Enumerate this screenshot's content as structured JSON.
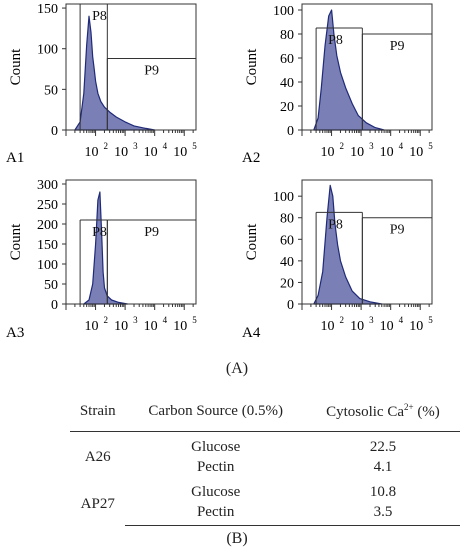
{
  "chart_data": [
    {
      "type": "area",
      "panel": "A1",
      "ylabel": "Count",
      "x_log": true,
      "xlim": [
        10,
        250000
      ],
      "ylim": [
        0,
        155
      ],
      "yticks": [
        0,
        50,
        100,
        150
      ],
      "xticks": [
        {
          "value": 100,
          "label": "10",
          "exp": "2"
        },
        {
          "value": 1000,
          "label": "10",
          "exp": "3"
        },
        {
          "value": 10000,
          "label": "10",
          "exp": "4"
        },
        {
          "value": 100000,
          "label": "10",
          "exp": "5"
        }
      ],
      "gates": [
        {
          "name": "P8",
          "x_start": 30,
          "x_end": 250,
          "y": 155
        },
        {
          "name": "P9",
          "x_start": 250,
          "x_end": 250000,
          "y": 88
        }
      ],
      "x": [
        20,
        30,
        40,
        50,
        60,
        70,
        80,
        90,
        100,
        120,
        150,
        200,
        300,
        500,
        1000,
        2000,
        5000,
        10000
      ],
      "y": [
        0,
        10,
        45,
        105,
        140,
        120,
        90,
        75,
        60,
        45,
        35,
        28,
        22,
        16,
        10,
        5,
        2,
        0
      ]
    },
    {
      "type": "area",
      "panel": "A2",
      "ylabel": "Count",
      "x_log": true,
      "xlim": [
        10,
        250000
      ],
      "ylim": [
        0,
        105
      ],
      "yticks": [
        0,
        20,
        40,
        60,
        80,
        100
      ],
      "xticks": [
        {
          "value": 100,
          "label": "10",
          "exp": "2"
        },
        {
          "value": 1000,
          "label": "10",
          "exp": "3"
        },
        {
          "value": 10000,
          "label": "10",
          "exp": "4"
        },
        {
          "value": 100000,
          "label": "10",
          "exp": "5"
        }
      ],
      "gates": [
        {
          "name": "P8",
          "x_start": 30,
          "x_end": 1100,
          "y": 85
        },
        {
          "name": "P9",
          "x_start": 1100,
          "x_end": 250000,
          "y": 80
        }
      ],
      "x": [
        25,
        35,
        45,
        60,
        80,
        100,
        120,
        150,
        200,
        300,
        500,
        800,
        1500,
        3000,
        6000
      ],
      "y": [
        0,
        10,
        35,
        70,
        95,
        100,
        80,
        62,
        48,
        35,
        22,
        12,
        6,
        2,
        0
      ]
    },
    {
      "type": "area",
      "panel": "A3",
      "ylabel": "Count",
      "x_log": true,
      "xlim": [
        10,
        250000
      ],
      "ylim": [
        0,
        310
      ],
      "yticks": [
        0,
        50,
        100,
        150,
        200,
        250,
        300
      ],
      "xticks": [
        {
          "value": 100,
          "label": "10",
          "exp": "2"
        },
        {
          "value": 1000,
          "label": "10",
          "exp": "3"
        },
        {
          "value": 10000,
          "label": "10",
          "exp": "4"
        },
        {
          "value": 100000,
          "label": "10",
          "exp": "5"
        }
      ],
      "gates": [
        {
          "name": "P8",
          "x_start": 30,
          "x_end": 250,
          "y": 210
        },
        {
          "name": "P9",
          "x_start": 250,
          "x_end": 250000,
          "y": 210
        }
      ],
      "x": [
        40,
        60,
        80,
        100,
        120,
        140,
        160,
        180,
        200,
        250,
        350,
        600,
        1200
      ],
      "y": [
        0,
        10,
        50,
        150,
        260,
        280,
        180,
        80,
        40,
        20,
        10,
        4,
        0
      ]
    },
    {
      "type": "area",
      "panel": "A4",
      "ylabel": "Count",
      "x_log": true,
      "xlim": [
        10,
        250000
      ],
      "ylim": [
        0,
        115
      ],
      "yticks": [
        0,
        20,
        40,
        60,
        80,
        100
      ],
      "xticks": [
        {
          "value": 100,
          "label": "10",
          "exp": "2"
        },
        {
          "value": 1000,
          "label": "10",
          "exp": "3"
        },
        {
          "value": 10000,
          "label": "10",
          "exp": "4"
        },
        {
          "value": 100000,
          "label": "10",
          "exp": "5"
        }
      ],
      "gates": [
        {
          "name": "P8",
          "x_start": 30,
          "x_end": 1100,
          "y": 85
        },
        {
          "name": "P9",
          "x_start": 1100,
          "x_end": 250000,
          "y": 80
        }
      ],
      "x": [
        25,
        35,
        50,
        70,
        90,
        110,
        130,
        160,
        200,
        300,
        500,
        900,
        2000,
        5000
      ],
      "y": [
        0,
        8,
        30,
        80,
        110,
        100,
        75,
        55,
        40,
        25,
        12,
        5,
        2,
        0
      ]
    }
  ],
  "caption_a": "(A)",
  "caption_b": "(B)",
  "table": {
    "headers": {
      "strain": "Strain",
      "carbon": "Carbon Source (0.5%)",
      "cytosolic": "Cytosolic Ca",
      "cytosolic_sup": "2+",
      "cytosolic_unit": " (%)"
    },
    "rows": [
      {
        "strain": "A26",
        "sources": [
          {
            "carbon": "Glucose",
            "value": "22.5"
          },
          {
            "carbon": "Pectin",
            "value": "4.1"
          }
        ]
      },
      {
        "strain": "AP27",
        "sources": [
          {
            "carbon": "Glucose",
            "value": "10.8"
          },
          {
            "carbon": "Pectin",
            "value": "3.5"
          }
        ]
      }
    ]
  },
  "colors": {
    "fill": "#7a7fb6",
    "stroke": "#1f2a78",
    "axis": "#333333"
  }
}
